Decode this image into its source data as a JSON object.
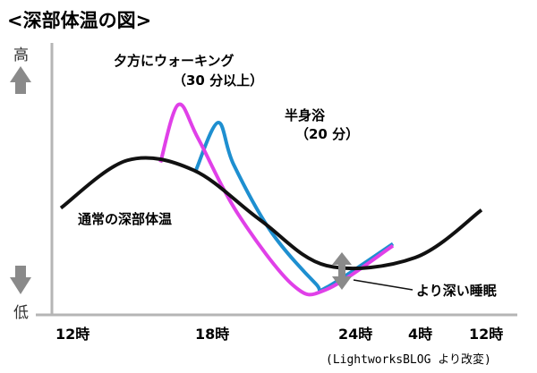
{
  "chart_data": {
    "type": "line",
    "title": "<深部体温の図>",
    "y_high_label": "高",
    "y_low_label": "低",
    "x_ticks": [
      "12時",
      "18時",
      "24時",
      "4時",
      "12時"
    ],
    "series": [
      {
        "name": "通常の深部体温",
        "color": "#111111",
        "points": [
          [
            0,
            0.43
          ],
          [
            3,
            0.67
          ],
          [
            6,
            0.62
          ],
          [
            9,
            0.37
          ],
          [
            12,
            0.14
          ],
          [
            16,
            0.18
          ],
          [
            19,
            0.42
          ]
        ]
      },
      {
        "name": "夕方にウォーキング（30分以上）",
        "color": "#e040e8",
        "points": [
          [
            4.5,
            0.66
          ],
          [
            5.3,
            0.95
          ],
          [
            6.2,
            0.78
          ],
          [
            8,
            0.4
          ],
          [
            10.5,
            0.04
          ],
          [
            12,
            0.02
          ],
          [
            15,
            0.24
          ]
        ]
      },
      {
        "name": "半身浴（20分）",
        "color": "#1e8fd0",
        "points": [
          [
            6.1,
            0.62
          ],
          [
            7.1,
            0.86
          ],
          [
            7.8,
            0.65
          ],
          [
            9.5,
            0.31
          ],
          [
            11.5,
            0.05
          ],
          [
            12,
            0.03
          ],
          [
            15,
            0.25
          ]
        ]
      }
    ],
    "annotations": [
      {
        "text": "夕方にウォーキング",
        "sub": "（30 分以上）"
      },
      {
        "text": "半身浴",
        "sub": "（20 分）"
      },
      {
        "text": "通常の深部体温"
      },
      {
        "text": "より深い睡眠"
      }
    ]
  },
  "credit": "(LightworksBLOG より改変)"
}
